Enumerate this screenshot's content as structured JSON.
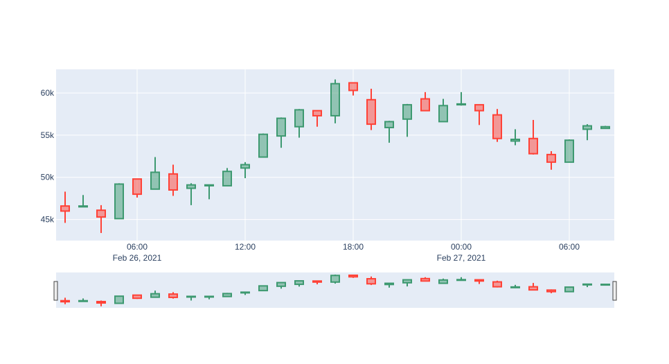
{
  "chart_data": {
    "type": "candlestick",
    "title": "",
    "xlabel": "",
    "ylabel": "",
    "ylim": [
      42500,
      62800
    ],
    "xlim": [
      "2021-02-26 01:30",
      "2021-02-27 08:30"
    ],
    "grid": true,
    "rangeslider": true,
    "colors": {
      "increasing": "#3D9970",
      "decreasing": "#FF4136",
      "plot_bg": "#E5ECF6",
      "tick_text": "#2a3f5f"
    },
    "x_ticks": [
      {
        "value": "2021-02-26 06:00",
        "line1": "06:00",
        "line2": "Feb 26, 2021"
      },
      {
        "value": "2021-02-26 12:00",
        "line1": "12:00",
        "line2": ""
      },
      {
        "value": "2021-02-26 18:00",
        "line1": "18:00",
        "line2": ""
      },
      {
        "value": "2021-02-27 00:00",
        "line1": "00:00",
        "line2": "Feb 27, 2021"
      },
      {
        "value": "2021-02-27 06:00",
        "line1": "06:00",
        "line2": ""
      }
    ],
    "y_ticks": [
      {
        "value": 45000,
        "label": "45k"
      },
      {
        "value": 50000,
        "label": "50k"
      },
      {
        "value": 55000,
        "label": "55k"
      },
      {
        "value": 60000,
        "label": "60k"
      }
    ],
    "candles": [
      {
        "x": "2021-02-26 02:00",
        "open": 46600,
        "high": 48300,
        "low": 44600,
        "close": 46000
      },
      {
        "x": "2021-02-26 03:00",
        "open": 46500,
        "high": 47900,
        "low": 46500,
        "close": 46600
      },
      {
        "x": "2021-02-26 04:00",
        "open": 46100,
        "high": 46700,
        "low": 43400,
        "close": 45300
      },
      {
        "x": "2021-02-26 05:00",
        "open": 45100,
        "high": 49300,
        "low": 45100,
        "close": 49200
      },
      {
        "x": "2021-02-26 06:00",
        "open": 49800,
        "high": 49800,
        "low": 47600,
        "close": 48000
      },
      {
        "x": "2021-02-26 07:00",
        "open": 48600,
        "high": 52400,
        "low": 48600,
        "close": 50600
      },
      {
        "x": "2021-02-26 08:00",
        "open": 50400,
        "high": 51500,
        "low": 47800,
        "close": 48500
      },
      {
        "x": "2021-02-26 09:00",
        "open": 48700,
        "high": 49300,
        "low": 46700,
        "close": 49100
      },
      {
        "x": "2021-02-26 10:00",
        "open": 49000,
        "high": 49100,
        "low": 47400,
        "close": 49100
      },
      {
        "x": "2021-02-26 11:00",
        "open": 49000,
        "high": 51100,
        "low": 49000,
        "close": 50700
      },
      {
        "x": "2021-02-26 12:00",
        "open": 51100,
        "high": 51800,
        "low": 49900,
        "close": 51500
      },
      {
        "x": "2021-02-26 13:00",
        "open": 52400,
        "high": 55200,
        "low": 52400,
        "close": 55100
      },
      {
        "x": "2021-02-26 14:00",
        "open": 54900,
        "high": 57100,
        "low": 53500,
        "close": 57000
      },
      {
        "x": "2021-02-26 15:00",
        "open": 56000,
        "high": 58100,
        "low": 54700,
        "close": 58000
      },
      {
        "x": "2021-02-26 16:00",
        "open": 57900,
        "high": 57900,
        "low": 56000,
        "close": 57300
      },
      {
        "x": "2021-02-26 17:00",
        "open": 57300,
        "high": 61600,
        "low": 56400,
        "close": 61100
      },
      {
        "x": "2021-02-26 18:00",
        "open": 61200,
        "high": 61200,
        "low": 59700,
        "close": 60300
      },
      {
        "x": "2021-02-26 19:00",
        "open": 59200,
        "high": 60500,
        "low": 55600,
        "close": 56300
      },
      {
        "x": "2021-02-26 20:00",
        "open": 55900,
        "high": 56700,
        "low": 54100,
        "close": 56600
      },
      {
        "x": "2021-02-26 21:00",
        "open": 56900,
        "high": 58700,
        "low": 54800,
        "close": 58600
      },
      {
        "x": "2021-02-26 22:00",
        "open": 59300,
        "high": 60100,
        "low": 57900,
        "close": 57900
      },
      {
        "x": "2021-02-26 23:00",
        "open": 56600,
        "high": 59300,
        "low": 56600,
        "close": 58500
      },
      {
        "x": "2021-02-27 00:00",
        "open": 58600,
        "high": 60100,
        "low": 58500,
        "close": 58700
      },
      {
        "x": "2021-02-27 01:00",
        "open": 58600,
        "high": 58600,
        "low": 56200,
        "close": 57900
      },
      {
        "x": "2021-02-27 02:00",
        "open": 57400,
        "high": 58100,
        "low": 54200,
        "close": 54600
      },
      {
        "x": "2021-02-27 03:00",
        "open": 54300,
        "high": 55700,
        "low": 53800,
        "close": 54500
      },
      {
        "x": "2021-02-27 04:00",
        "open": 54600,
        "high": 56800,
        "low": 52700,
        "close": 52800
      },
      {
        "x": "2021-02-27 05:00",
        "open": 52700,
        "high": 53100,
        "low": 50900,
        "close": 51800
      },
      {
        "x": "2021-02-27 06:00",
        "open": 51800,
        "high": 54500,
        "low": 51800,
        "close": 54400
      },
      {
        "x": "2021-02-27 07:00",
        "open": 55700,
        "high": 56300,
        "low": 54400,
        "close": 56100
      },
      {
        "x": "2021-02-27 08:00",
        "open": 55800,
        "high": 56100,
        "low": 55800,
        "close": 56000
      }
    ]
  }
}
